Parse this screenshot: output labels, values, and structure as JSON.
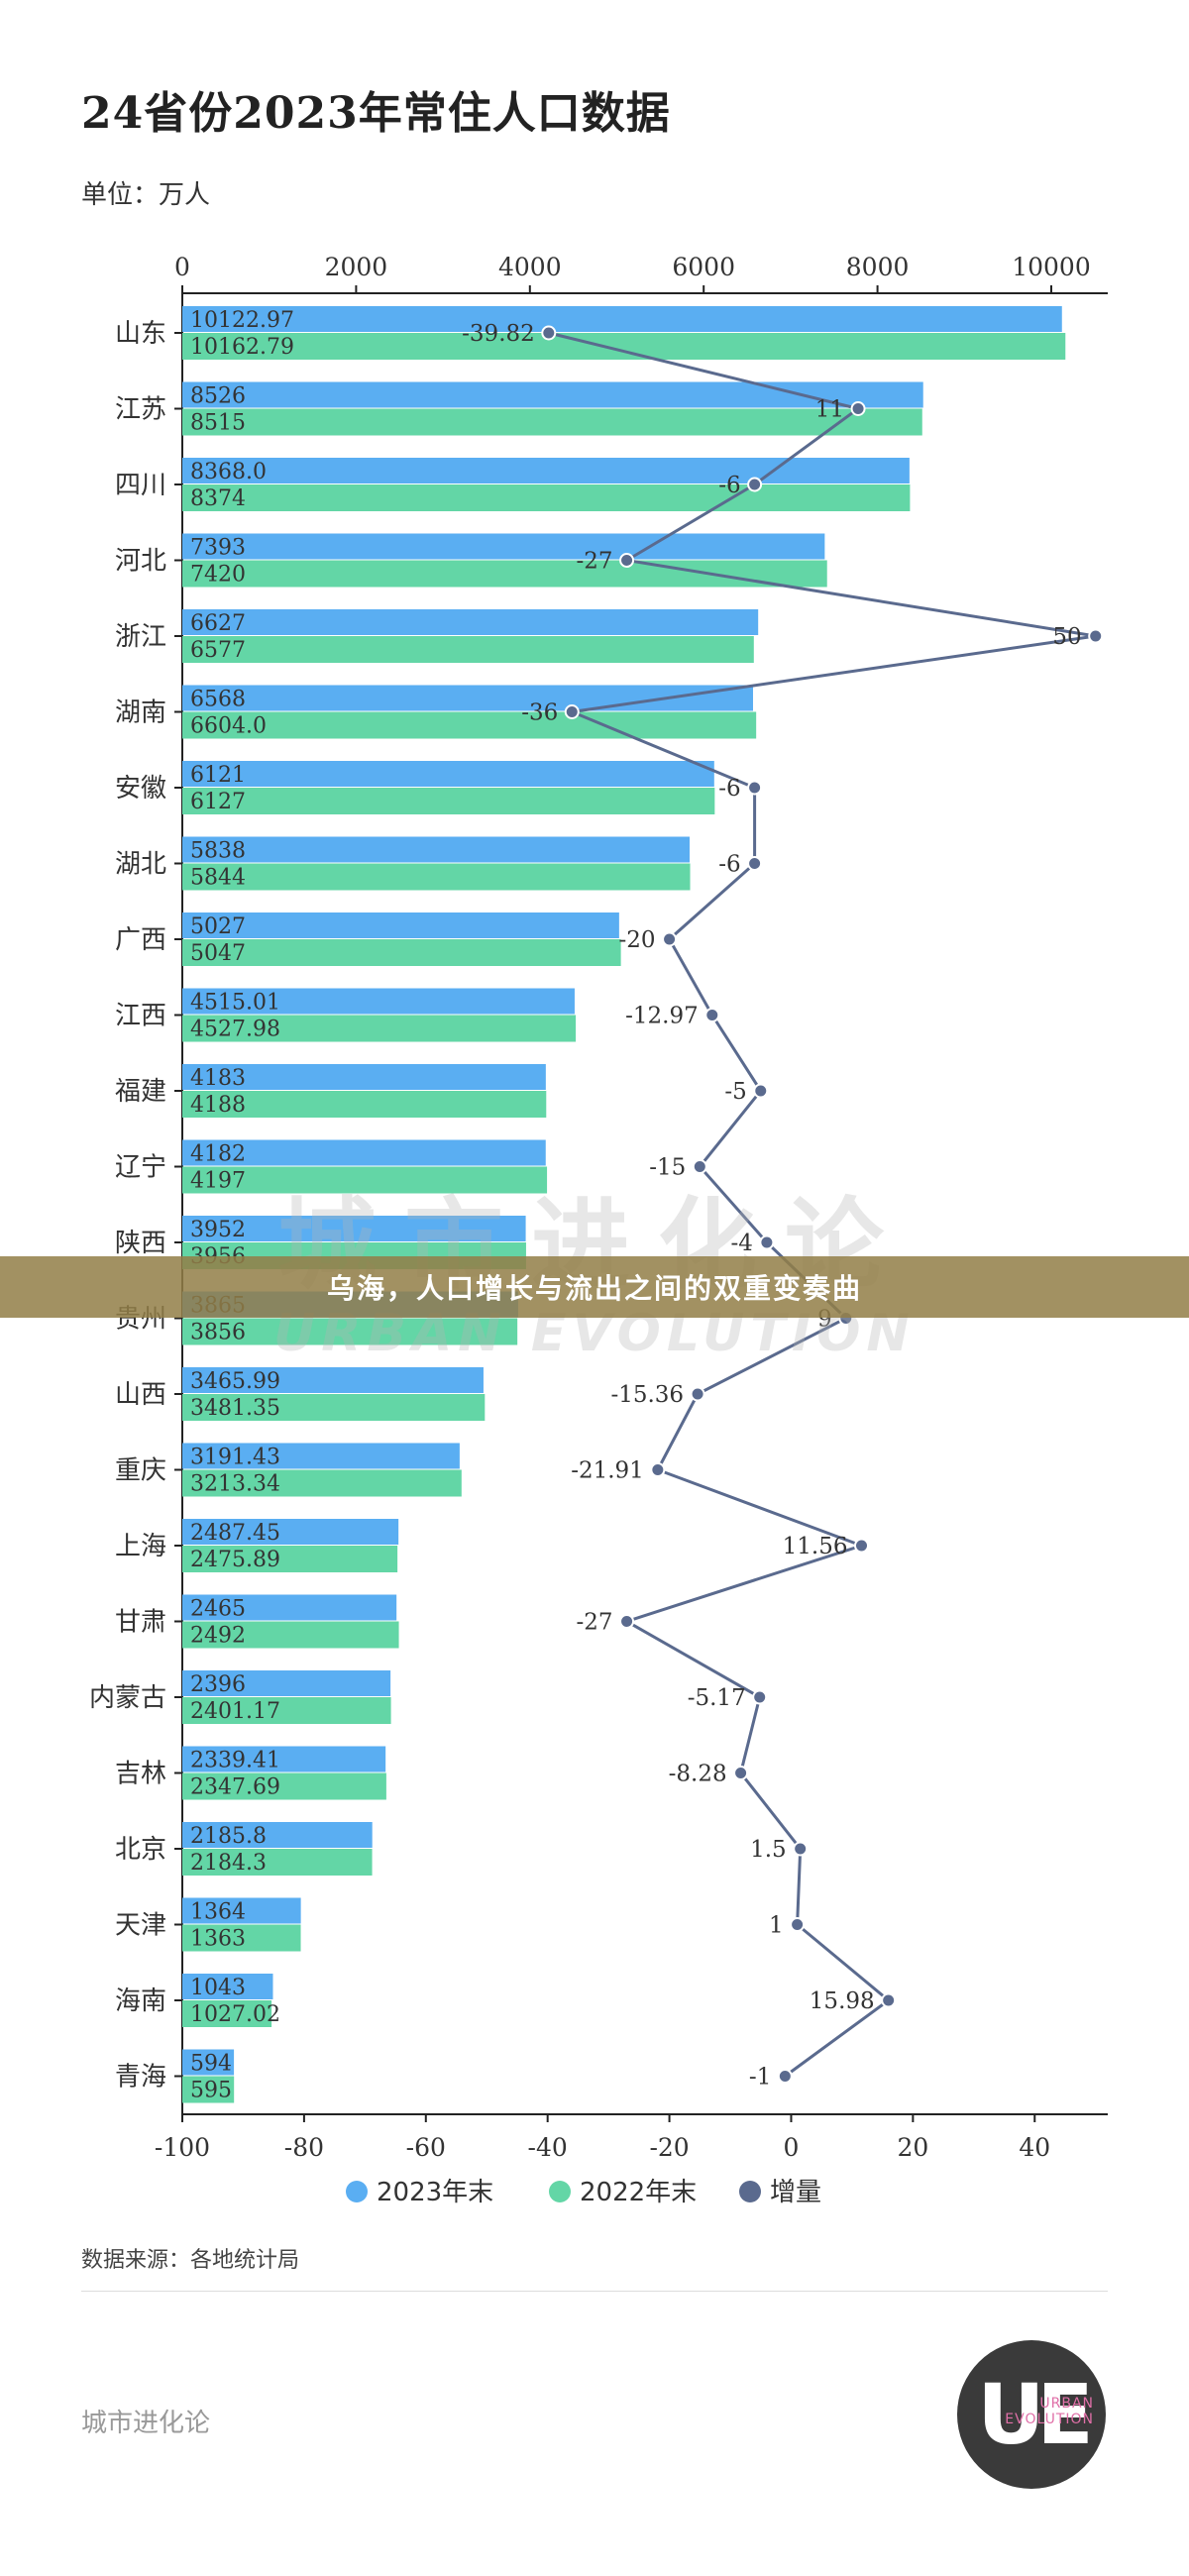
{
  "title": "24省份2023年常住人口数据",
  "unit": "单位：万人",
  "source": "数据来源：各地统计局",
  "brand": "城市进化论",
  "banner": "乌海，人口增长与流出之间的双重变奏曲",
  "watermark": {
    "cn": "城市进化论",
    "en": "URBAN EVOLUTION"
  },
  "logo": {
    "mark": "UE",
    "line1": "URBAN",
    "line2": "EVOLUTION"
  },
  "colors": {
    "bar2023": "#5aaef2",
    "bar2022": "#63d6a6",
    "line": "#5a6a8e"
  },
  "chart_data": {
    "type": "bar",
    "orientation": "horizontal",
    "categories": [
      "山东",
      "江苏",
      "四川",
      "河北",
      "浙江",
      "湖南",
      "安徽",
      "湖北",
      "广西",
      "江西",
      "福建",
      "辽宁",
      "陕西",
      "贵州",
      "山西",
      "重庆",
      "上海",
      "甘肃",
      "内蒙古",
      "吉林",
      "北京",
      "天津",
      "海南",
      "青海"
    ],
    "series": [
      {
        "name": "2023年末",
        "type": "bar",
        "axis": "top",
        "values": [
          10122.97,
          8526,
          8368.0,
          7393,
          6627,
          6568,
          6121,
          5838,
          5027,
          4515.01,
          4183,
          4182,
          3952,
          3865,
          3465.99,
          3191.43,
          2487.45,
          2465,
          2396,
          2339.41,
          2185.8,
          1364,
          1043,
          594
        ],
        "labels": [
          "10122.97",
          "8526",
          "8368.0",
          "7393",
          "6627",
          "6568",
          "6121",
          "5838",
          "5027",
          "4515.01",
          "4183",
          "4182",
          "3952",
          "3865",
          "3465.99",
          "3191.43",
          "2487.45",
          "2465",
          "2396",
          "2339.41",
          "2185.8",
          "1364",
          "1043",
          "594"
        ]
      },
      {
        "name": "2022年末",
        "type": "bar",
        "axis": "top",
        "values": [
          10162.79,
          8515,
          8374,
          7420,
          6577,
          6604.0,
          6127,
          5844,
          5047,
          4527.98,
          4188,
          4197,
          3956,
          3856,
          3481.35,
          3213.34,
          2475.89,
          2492,
          2401.17,
          2347.69,
          2184.3,
          1363,
          1027.02,
          595
        ],
        "labels": [
          "10162.79",
          "8515",
          "8374",
          "7420",
          "6577",
          "6604.0",
          "6127",
          "5844",
          "5047",
          "4527.98",
          "4188",
          "4197",
          "3956",
          "3856",
          "3481.35",
          "3213.34",
          "2475.89",
          "2492",
          "2401.17",
          "2347.69",
          "2184.3",
          "1363",
          "1027.02",
          "595"
        ]
      },
      {
        "name": "增量",
        "type": "line",
        "axis": "bottom",
        "values": [
          -39.82,
          11,
          -6,
          -27,
          50,
          -36,
          -6,
          -6,
          -20,
          -12.97,
          -5,
          -15,
          -4,
          9,
          -15.36,
          -21.91,
          11.56,
          -27,
          -5.17,
          -8.28,
          1.5,
          1,
          15.98,
          -1
        ],
        "labels": [
          "-39.82",
          "11",
          "-6",
          "-27",
          "50",
          "-36",
          "-6",
          "-6",
          "-20",
          "-12.97",
          "-5",
          "-15",
          "-4",
          "9",
          "-15.36",
          "-21.91",
          "11.56",
          "-27",
          "-5.17",
          "-8.28",
          "1.5",
          "1",
          "15.98",
          "-1"
        ]
      }
    ],
    "top_axis": {
      "min": 0,
      "max": 10650,
      "ticks": [
        0,
        2000,
        4000,
        6000,
        8000,
        10000
      ],
      "tick_labels": [
        "0",
        "2000",
        "4000",
        "6000",
        "8000",
        "10000"
      ]
    },
    "bottom_axis": {
      "min": -100,
      "max": 52,
      "ticks": [
        -100,
        -80,
        -60,
        -40,
        -20,
        0,
        20,
        40
      ],
      "tick_labels": [
        "-100",
        "-80",
        "-60",
        "-40",
        "-20",
        "0",
        "20",
        "40"
      ]
    },
    "legend_position": "bottom-center",
    "grid": false
  }
}
